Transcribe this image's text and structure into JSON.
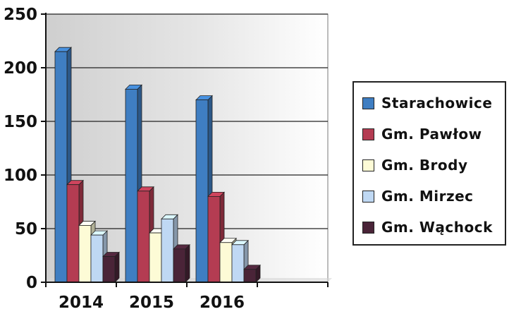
{
  "chart_data": {
    "type": "bar",
    "title": "",
    "xlabel": "",
    "ylabel": "",
    "categories": [
      "2014",
      "2015",
      "2016"
    ],
    "series": [
      {
        "name": "Starachowice",
        "values": [
          215,
          180,
          170
        ],
        "color": "#3f7ec2"
      },
      {
        "name": "Gm. Pawłow",
        "values": [
          91,
          85,
          80
        ],
        "color": "#b43c52"
      },
      {
        "name": "Gm. Brody",
        "values": [
          53,
          46,
          37
        ],
        "color": "#fdfbd6"
      },
      {
        "name": "Gm. Mirzec",
        "values": [
          44,
          59,
          35
        ],
        "color": "#bfd8f3"
      },
      {
        "name": "Gm. Wąchock",
        "values": [
          24,
          31,
          12
        ],
        "color": "#4a2438"
      }
    ],
    "ylim": [
      0,
      250
    ],
    "yticks": [
      0,
      50,
      100,
      150,
      200,
      250
    ],
    "grid": true,
    "legend_position": "right",
    "plot_background": "#dcdcdc"
  }
}
